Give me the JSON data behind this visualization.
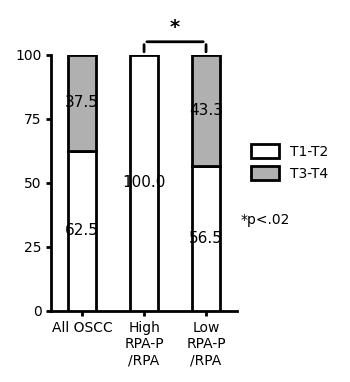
{
  "categories": [
    "All OSCC",
    "High\nRPA-P\n/RPA",
    "Low\nRPA-P\n/RPA"
  ],
  "t1t2_values": [
    62.5,
    100.0,
    56.5
  ],
  "t3t4_values": [
    37.5,
    0.0,
    43.3
  ],
  "bar_width": 0.45,
  "bar_positions": [
    0,
    1,
    2
  ],
  "color_t1t2": "#ffffff",
  "color_t3t4": "#b0b0b0",
  "edge_color": "#000000",
  "ylim": [
    0,
    100
  ],
  "yticks": [
    0,
    25,
    50,
    75,
    100
  ],
  "label_t1t2": "T1-T2",
  "label_t3t4": "T3-T4",
  "significance_text": "*",
  "pvalue_text": "*p<.02",
  "value_fontsize": 11,
  "tick_fontsize": 10,
  "legend_fontsize": 10,
  "pvalue_fontsize": 10,
  "linewidth": 2.0
}
